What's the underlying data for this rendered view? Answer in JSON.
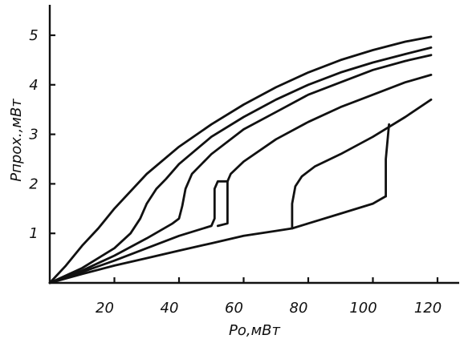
{
  "chart_data": {
    "type": "line",
    "xlabel": "Po,мВт",
    "ylabel": "Рпрох.,мВт",
    "xlim": [
      0,
      120
    ],
    "ylim": [
      0,
      5.3
    ],
    "x_ticks": [
      {
        "value": 20,
        "label": "20"
      },
      {
        "value": 40,
        "label": "40"
      },
      {
        "value": 60,
        "label": "60"
      },
      {
        "value": 80,
        "label": "80"
      },
      {
        "value": 100,
        "label": "100"
      },
      {
        "value": 120,
        "label": "120"
      }
    ],
    "y_ticks": [
      {
        "value": 1,
        "label": "1"
      },
      {
        "value": 2,
        "label": "2"
      },
      {
        "value": 3,
        "label": "3"
      },
      {
        "value": 4,
        "label": "4"
      },
      {
        "value": 5,
        "label": "5"
      }
    ],
    "grid": false,
    "series": [
      {
        "points": [
          [
            0,
            0
          ],
          [
            5,
            0.35
          ],
          [
            10,
            0.75
          ],
          [
            15,
            1.1
          ],
          [
            20,
            1.5
          ],
          [
            30,
            2.2
          ],
          [
            40,
            2.75
          ],
          [
            50,
            3.2
          ],
          [
            60,
            3.6
          ],
          [
            70,
            3.95
          ],
          [
            80,
            4.25
          ],
          [
            90,
            4.5
          ],
          [
            100,
            4.7
          ],
          [
            110,
            4.87
          ],
          [
            118,
            4.97
          ]
        ]
      },
      {
        "points": [
          [
            0,
            0
          ],
          [
            10,
            0.3
          ],
          [
            20,
            0.7
          ],
          [
            25,
            1.0
          ],
          [
            28,
            1.3
          ],
          [
            30,
            1.6
          ],
          [
            33,
            1.9
          ],
          [
            36,
            2.1
          ],
          [
            40,
            2.4
          ],
          [
            50,
            2.95
          ],
          [
            60,
            3.35
          ],
          [
            70,
            3.7
          ],
          [
            80,
            4.0
          ],
          [
            90,
            4.25
          ],
          [
            100,
            4.45
          ],
          [
            110,
            4.62
          ],
          [
            118,
            4.75
          ]
        ]
      },
      {
        "points": [
          [
            0,
            0
          ],
          [
            10,
            0.25
          ],
          [
            20,
            0.55
          ],
          [
            30,
            0.9
          ],
          [
            38,
            1.2
          ],
          [
            40,
            1.3
          ],
          [
            41,
            1.55
          ],
          [
            42,
            1.9
          ],
          [
            44,
            2.2
          ],
          [
            47,
            2.4
          ],
          [
            50,
            2.6
          ],
          [
            60,
            3.1
          ],
          [
            70,
            3.45
          ],
          [
            80,
            3.8
          ],
          [
            90,
            4.05
          ],
          [
            100,
            4.3
          ],
          [
            110,
            4.48
          ],
          [
            118,
            4.6
          ]
        ]
      },
      {
        "points": [
          [
            0,
            0
          ],
          [
            10,
            0.22
          ],
          [
            20,
            0.45
          ],
          [
            30,
            0.7
          ],
          [
            40,
            0.95
          ],
          [
            50,
            1.15
          ],
          [
            51,
            1.3
          ],
          [
            51,
            1.9
          ],
          [
            52,
            2.05
          ],
          [
            55,
            2.05
          ],
          [
            56,
            2.2
          ],
          [
            60,
            2.45
          ],
          [
            70,
            2.9
          ],
          [
            80,
            3.25
          ],
          [
            90,
            3.55
          ],
          [
            100,
            3.8
          ],
          [
            110,
            4.05
          ],
          [
            118,
            4.2
          ]
        ]
      },
      {
        "points": [
          [
            52,
            1.15
          ],
          [
            55,
            1.2
          ],
          [
            55,
            2.05
          ]
        ]
      },
      {
        "points": [
          [
            0,
            0
          ],
          [
            10,
            0.18
          ],
          [
            20,
            0.35
          ],
          [
            30,
            0.5
          ],
          [
            40,
            0.65
          ],
          [
            50,
            0.8
          ],
          [
            60,
            0.95
          ],
          [
            70,
            1.05
          ],
          [
            75,
            1.1
          ],
          [
            80,
            1.2
          ],
          [
            90,
            1.4
          ],
          [
            100,
            1.6
          ],
          [
            104,
            1.75
          ]
        ]
      },
      {
        "points": [
          [
            75,
            1.1
          ],
          [
            75,
            1.6
          ],
          [
            76,
            1.95
          ],
          [
            78,
            2.15
          ],
          [
            82,
            2.35
          ],
          [
            90,
            2.6
          ],
          [
            100,
            2.95
          ],
          [
            110,
            3.35
          ],
          [
            118,
            3.7
          ]
        ]
      },
      {
        "points": [
          [
            104,
            1.75
          ],
          [
            104,
            2.5
          ],
          [
            105,
            3.2
          ]
        ]
      }
    ]
  }
}
